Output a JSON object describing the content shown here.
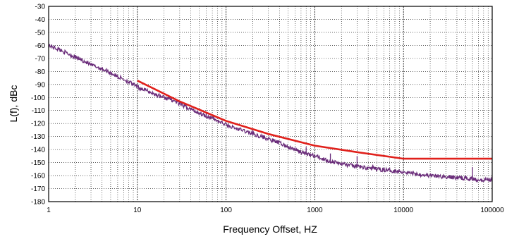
{
  "chart_data": {
    "type": "line",
    "title": "",
    "xlabel": "Frequency Offset, HZ",
    "ylabel": "L(f), dBc",
    "x_scale": "log",
    "xlim": [
      1,
      100000
    ],
    "ylim": [
      -180,
      -30
    ],
    "grid": true,
    "x_ticks": [
      "1",
      "10",
      "100",
      "1000",
      "10000",
      "100000"
    ],
    "y_ticks": [
      "-30",
      "-40",
      "-50",
      "-60",
      "-70",
      "-80",
      "-90",
      "-100",
      "-110",
      "-120",
      "-130",
      "-140",
      "-150",
      "-160",
      "-170",
      "-180"
    ],
    "series": [
      {
        "color": "#e0201b",
        "points": [
          [
            10,
            -87
          ],
          [
            30,
            -103
          ],
          [
            100,
            -118
          ],
          [
            300,
            -128
          ],
          [
            1000,
            -137
          ],
          [
            3000,
            -142
          ],
          [
            10000,
            -147
          ],
          [
            100000,
            -147
          ]
        ]
      },
      {
        "color": "#6a2c7a",
        "points": [
          [
            1,
            -60
          ],
          [
            1.3,
            -63
          ],
          [
            1.6,
            -66
          ],
          [
            2,
            -69
          ],
          [
            2.5,
            -72
          ],
          [
            3,
            -75
          ],
          [
            4,
            -78
          ],
          [
            5,
            -81
          ],
          [
            6,
            -84
          ],
          [
            7,
            -86
          ],
          [
            8,
            -88
          ],
          [
            10,
            -92
          ],
          [
            13,
            -95
          ],
          [
            15,
            -97
          ],
          [
            20,
            -100
          ],
          [
            25,
            -102
          ],
          [
            30,
            -105
          ],
          [
            40,
            -109
          ],
          [
            50,
            -112
          ],
          [
            70,
            -116
          ],
          [
            100,
            -121
          ],
          [
            130,
            -124
          ],
          [
            150,
            -125
          ],
          [
            200,
            -128
          ],
          [
            250,
            -130
          ],
          [
            300,
            -132
          ],
          [
            400,
            -135
          ],
          [
            500,
            -138
          ],
          [
            700,
            -142
          ],
          [
            1000,
            -145
          ],
          [
            1500,
            -149
          ],
          [
            2000,
            -151
          ],
          [
            3000,
            -153
          ],
          [
            5000,
            -155
          ],
          [
            7000,
            -156
          ],
          [
            10000,
            -157
          ],
          [
            15000,
            -159
          ],
          [
            20000,
            -160
          ],
          [
            30000,
            -161
          ],
          [
            50000,
            -162
          ],
          [
            70000,
            -163
          ],
          [
            100000,
            -163
          ]
        ]
      }
    ]
  }
}
